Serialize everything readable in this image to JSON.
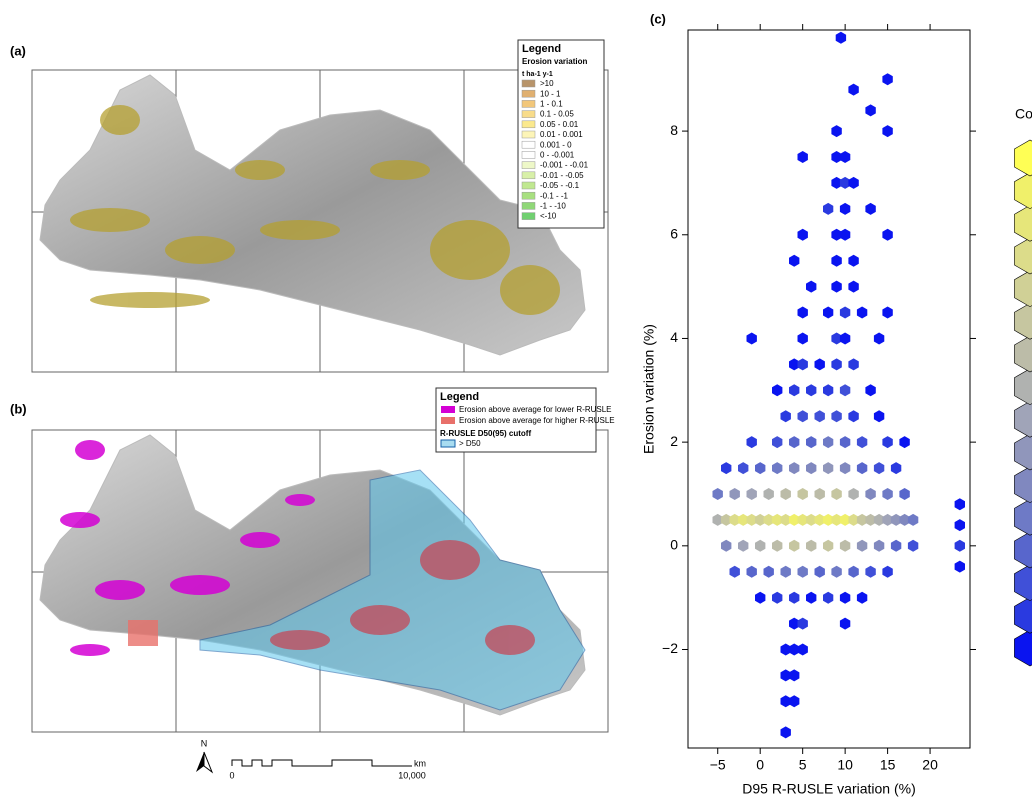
{
  "panels": {
    "a": {
      "label": "(a)",
      "legend": {
        "title": "Legend",
        "subtitle": "Erosion variation",
        "units": "t ha-1 y-1",
        "items": [
          {
            "label": ">10",
            "color": "#b8946a"
          },
          {
            "label": "10 - 1",
            "color": "#e0b070"
          },
          {
            "label": "1 - 0.1",
            "color": "#f2c77a"
          },
          {
            "label": "0.1 - 0.05",
            "color": "#f8dc8a"
          },
          {
            "label": "0.05 - 0.01",
            "color": "#fbe98e"
          },
          {
            "label": "0.01 - 0.001",
            "color": "#fdf5b8"
          },
          {
            "label": "0.001 - 0",
            "color": "#ffffff"
          },
          {
            "label": "0 - -0.001",
            "color": "#ffffff"
          },
          {
            "label": "-0.001 - -0.01",
            "color": "#eef8c8"
          },
          {
            "label": "-0.01 - -0.05",
            "color": "#d8f0a8"
          },
          {
            "label": "-0.05 - -0.1",
            "color": "#c0e890"
          },
          {
            "label": "-0.1 - -1",
            "color": "#a8e080"
          },
          {
            "label": "-1 - -10",
            "color": "#90d878"
          },
          {
            "label": "<-10",
            "color": "#70d070"
          }
        ]
      }
    },
    "b": {
      "label": "(b)",
      "legend": {
        "title": "Legend",
        "items": [
          {
            "label": "Erosion above average for lower R-RUSLE",
            "color": "#d400d4"
          },
          {
            "label": "Erosion above average for higher R-RUSLE",
            "color": "#e8706a"
          }
        ],
        "cutoff_title": "R-RUSLE D50(95) cutoff",
        "cutoff_item": {
          "label": "> D50",
          "color": "#a8dcf0"
        }
      }
    },
    "scale_bar": {
      "north": "N",
      "start": "0",
      "end": "10,000",
      "unit": "km"
    }
  },
  "chart_data": {
    "type": "hexbin",
    "panel_label": "(c)",
    "x_label": "D95 R-RUSLE variation (%)",
    "y_label": "Erosion variation (%)",
    "xlim": [
      -8.5,
      24.7
    ],
    "ylim": [
      -3.9,
      9.95
    ],
    "xticks": [
      {
        "value": -5,
        "label": "−5"
      },
      0,
      5,
      10,
      15,
      20
    ],
    "yticks": [
      {
        "value": -2,
        "label": "−2"
      },
      0,
      2,
      4,
      6,
      8
    ],
    "legend_title": "Co",
    "colors": [
      "#0a14f0",
      "#2a3ae0",
      "#4050d8",
      "#5866cc",
      "#6e7ac6",
      "#8088bf",
      "#9096bb",
      "#a0a4b8",
      "#b0b2b0",
      "#bcbca8",
      "#c6c6a0",
      "#d0d096",
      "#dcdc8a",
      "#e6e67a",
      "#f0f06a",
      "#ffff55"
    ],
    "points": [
      [
        -5,
        0.5,
        8
      ],
      [
        -4,
        0.5,
        10
      ],
      [
        -3,
        0.5,
        12
      ],
      [
        -2,
        0.5,
        13
      ],
      [
        -1,
        0.5,
        12
      ],
      [
        0,
        0.5,
        11
      ],
      [
        1,
        0.5,
        12
      ],
      [
        2,
        0.5,
        13
      ],
      [
        3,
        0.5,
        12
      ],
      [
        4,
        0.5,
        14
      ],
      [
        5,
        0.5,
        13
      ],
      [
        6,
        0.5,
        12
      ],
      [
        7,
        0.5,
        13
      ],
      [
        8,
        0.5,
        14
      ],
      [
        9,
        0.5,
        13
      ],
      [
        10,
        0.5,
        14
      ],
      [
        11,
        0.5,
        12
      ],
      [
        12,
        0.5,
        10
      ],
      [
        13,
        0.5,
        9
      ],
      [
        14,
        0.5,
        8
      ],
      [
        15,
        0.5,
        7
      ],
      [
        16,
        0.5,
        6
      ],
      [
        17,
        0.5,
        5
      ],
      [
        18,
        0.5,
        4
      ],
      [
        -5,
        1,
        4
      ],
      [
        -3,
        1,
        6
      ],
      [
        -1,
        1,
        7
      ],
      [
        1,
        1,
        8
      ],
      [
        3,
        1,
        9
      ],
      [
        5,
        1,
        10
      ],
      [
        7,
        1,
        9
      ],
      [
        9,
        1,
        10
      ],
      [
        11,
        1,
        8
      ],
      [
        13,
        1,
        5
      ],
      [
        15,
        1,
        4
      ],
      [
        17,
        1,
        3
      ],
      [
        -4,
        0,
        5
      ],
      [
        -2,
        0,
        7
      ],
      [
        0,
        0,
        8
      ],
      [
        2,
        0,
        9
      ],
      [
        4,
        0,
        10
      ],
      [
        6,
        0,
        9
      ],
      [
        8,
        0,
        10
      ],
      [
        10,
        0,
        9
      ],
      [
        12,
        0,
        6
      ],
      [
        14,
        0,
        5
      ],
      [
        16,
        0,
        3
      ],
      [
        18,
        0,
        2
      ],
      [
        -3,
        -0.5,
        2
      ],
      [
        -1,
        -0.5,
        3
      ],
      [
        1,
        -0.5,
        3
      ],
      [
        3,
        -0.5,
        4
      ],
      [
        5,
        -0.5,
        4
      ],
      [
        7,
        -0.5,
        3
      ],
      [
        9,
        -0.5,
        4
      ],
      [
        11,
        -0.5,
        3
      ],
      [
        13,
        -0.5,
        2
      ],
      [
        15,
        -0.5,
        1
      ],
      [
        -4,
        1.5,
        1
      ],
      [
        -2,
        1.5,
        2
      ],
      [
        0,
        1.5,
        3
      ],
      [
        2,
        1.5,
        4
      ],
      [
        4,
        1.5,
        5
      ],
      [
        6,
        1.5,
        5
      ],
      [
        8,
        1.5,
        6
      ],
      [
        10,
        1.5,
        5
      ],
      [
        12,
        1.5,
        3
      ],
      [
        14,
        1.5,
        2
      ],
      [
        16,
        1.5,
        1
      ],
      [
        -1,
        2,
        1
      ],
      [
        2,
        2,
        2
      ],
      [
        4,
        2,
        3
      ],
      [
        6,
        2,
        3
      ],
      [
        8,
        2,
        4
      ],
      [
        10,
        2,
        3
      ],
      [
        12,
        2,
        2
      ],
      [
        15,
        2,
        1
      ],
      [
        17,
        2,
        0
      ],
      [
        3,
        2.5,
        1
      ],
      [
        5,
        2.5,
        2
      ],
      [
        7,
        2.5,
        2
      ],
      [
        9,
        2.5,
        2
      ],
      [
        11,
        2.5,
        1
      ],
      [
        14,
        2.5,
        0
      ],
      [
        2,
        3,
        0
      ],
      [
        4,
        3,
        1
      ],
      [
        6,
        3,
        1
      ],
      [
        8,
        3,
        1
      ],
      [
        10,
        3,
        2
      ],
      [
        13,
        3,
        0
      ],
      [
        4,
        3.5,
        0
      ],
      [
        5,
        3.5,
        1
      ],
      [
        7,
        3.5,
        0
      ],
      [
        9,
        3.5,
        1
      ],
      [
        11,
        3.5,
        1
      ],
      [
        -1,
        4,
        0
      ],
      [
        5,
        4,
        0
      ],
      [
        9,
        4,
        1
      ],
      [
        10,
        4,
        0
      ],
      [
        14,
        4,
        0
      ],
      [
        5,
        4.5,
        0
      ],
      [
        8,
        4.5,
        0
      ],
      [
        10,
        4.5,
        1
      ],
      [
        12,
        4.5,
        0
      ],
      [
        15,
        4.5,
        0
      ],
      [
        6,
        5,
        0
      ],
      [
        9,
        5,
        0
      ],
      [
        11,
        5,
        0
      ],
      [
        4,
        5.5,
        0
      ],
      [
        9,
        5.5,
        0
      ],
      [
        11,
        5.5,
        0
      ],
      [
        5,
        6,
        0
      ],
      [
        9,
        6,
        0
      ],
      [
        10,
        6,
        0
      ],
      [
        15,
        6,
        0
      ],
      [
        8,
        6.5,
        1
      ],
      [
        10,
        6.5,
        0
      ],
      [
        13,
        6.5,
        0
      ],
      [
        9,
        7,
        0
      ],
      [
        10,
        7,
        1
      ],
      [
        11,
        7,
        0
      ],
      [
        5,
        7.5,
        0
      ],
      [
        9,
        7.5,
        0
      ],
      [
        10,
        7.5,
        0
      ],
      [
        9,
        8,
        0
      ],
      [
        15,
        8,
        0
      ],
      [
        13,
        8.4,
        0
      ],
      [
        11,
        8.8,
        0
      ],
      [
        15,
        9,
        0
      ],
      [
        9.5,
        9.8,
        0
      ],
      [
        0,
        -1,
        0
      ],
      [
        2,
        -1,
        1
      ],
      [
        4,
        -1,
        1
      ],
      [
        6,
        -1,
        0
      ],
      [
        8,
        -1,
        1
      ],
      [
        10,
        -1,
        0
      ],
      [
        12,
        -1,
        0
      ],
      [
        4,
        -1.5,
        0
      ],
      [
        5,
        -1.5,
        1
      ],
      [
        10,
        -1.5,
        0
      ],
      [
        3,
        -2,
        0
      ],
      [
        4,
        -2,
        0
      ],
      [
        5,
        -2,
        0
      ],
      [
        3,
        -2.5,
        0
      ],
      [
        4,
        -2.5,
        0
      ],
      [
        3,
        -3,
        0
      ],
      [
        4,
        -3,
        0
      ],
      [
        3,
        -3.6,
        0
      ],
      [
        23.5,
        0.4,
        0
      ],
      [
        23.5,
        0,
        1
      ],
      [
        23.5,
        -0.4,
        0
      ],
      [
        23.5,
        0.8,
        0
      ]
    ]
  }
}
